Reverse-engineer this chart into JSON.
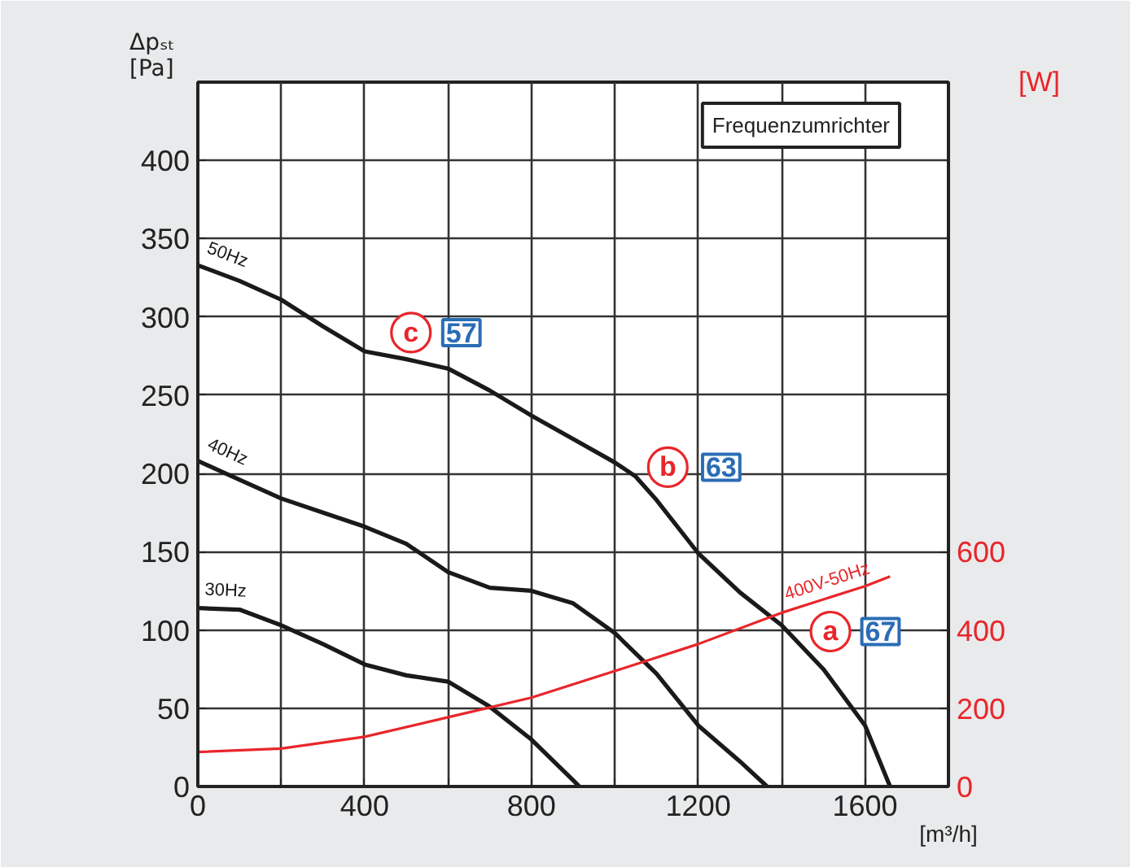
{
  "chart_data": {
    "type": "line",
    "subtitle": "Frequenzumrichter",
    "ylabel": "Δpₛₜ [Pa]",
    "xlabel": "[m³/h]",
    "y2label": "[W]",
    "xlim": [
      0,
      1800
    ],
    "xticks": [
      0,
      {
        "value": 200,
        "label": null
      },
      400,
      {
        "value": 600,
        "label": null
      },
      800,
      {
        "value": 1000,
        "label": null
      },
      1200,
      {
        "value": 1400,
        "label": null
      },
      1600,
      {
        "value": 1800,
        "label": null
      }
    ],
    "ylim": [
      0,
      450
    ],
    "yticks": [
      0,
      50,
      100,
      150,
      200,
      250,
      300,
      350,
      400
    ],
    "y2lim": [
      0,
      1800
    ],
    "y2ticks": [
      0,
      200,
      400,
      600
    ],
    "grid": true,
    "line_style": "solid",
    "series": [
      {
        "name": "50Hz",
        "color": "#1a1a1a",
        "x": [
          0,
          100,
          200,
          300,
          400,
          500,
          600,
          700,
          800,
          900,
          1000,
          1050,
          1100,
          1200,
          1300,
          1400,
          1500,
          1600,
          1660
        ],
        "values": [
          333,
          323,
          311,
          294,
          278,
          273,
          267,
          253,
          237,
          222,
          207,
          198,
          183,
          149,
          124,
          103,
          75,
          39,
          0
        ]
      },
      {
        "name": "40Hz",
        "color": "#1a1a1a",
        "x": [
          0,
          100,
          200,
          300,
          400,
          500,
          600,
          700,
          800,
          900,
          1000,
          1100,
          1200,
          1300,
          1365
        ],
        "values": [
          208,
          196,
          184,
          175,
          166,
          155,
          137,
          127,
          125,
          117,
          98,
          72,
          39,
          16,
          0
        ]
      },
      {
        "name": "30Hz",
        "color": "#1a1a1a",
        "x": [
          0,
          100,
          200,
          300,
          400,
          500,
          600,
          700,
          800,
          900,
          915
        ],
        "values": [
          114,
          113,
          103,
          91,
          78,
          71,
          67,
          51,
          30,
          4,
          0
        ]
      },
      {
        "name": "400V-50Hz",
        "color": "#e8262b",
        "axis": "y2",
        "x": [
          0,
          200,
          400,
          600,
          800,
          1000,
          1200,
          1400,
          1600,
          1660
        ],
        "values": [
          88,
          97,
          127,
          177,
          227,
          295,
          364,
          444,
          512,
          537
        ]
      }
    ],
    "annotations": [
      {
        "text": "c",
        "x": 511,
        "y": 290
      },
      {
        "text": "57",
        "x": 632,
        "y": 290
      },
      {
        "text": "b",
        "x": 1127,
        "y": 204
      },
      {
        "text": "63",
        "x": 1255,
        "y": 204
      },
      {
        "text": "a",
        "x": 1517,
        "y": 99
      },
      {
        "text": "67",
        "x": 1637,
        "y": 99
      }
    ]
  }
}
